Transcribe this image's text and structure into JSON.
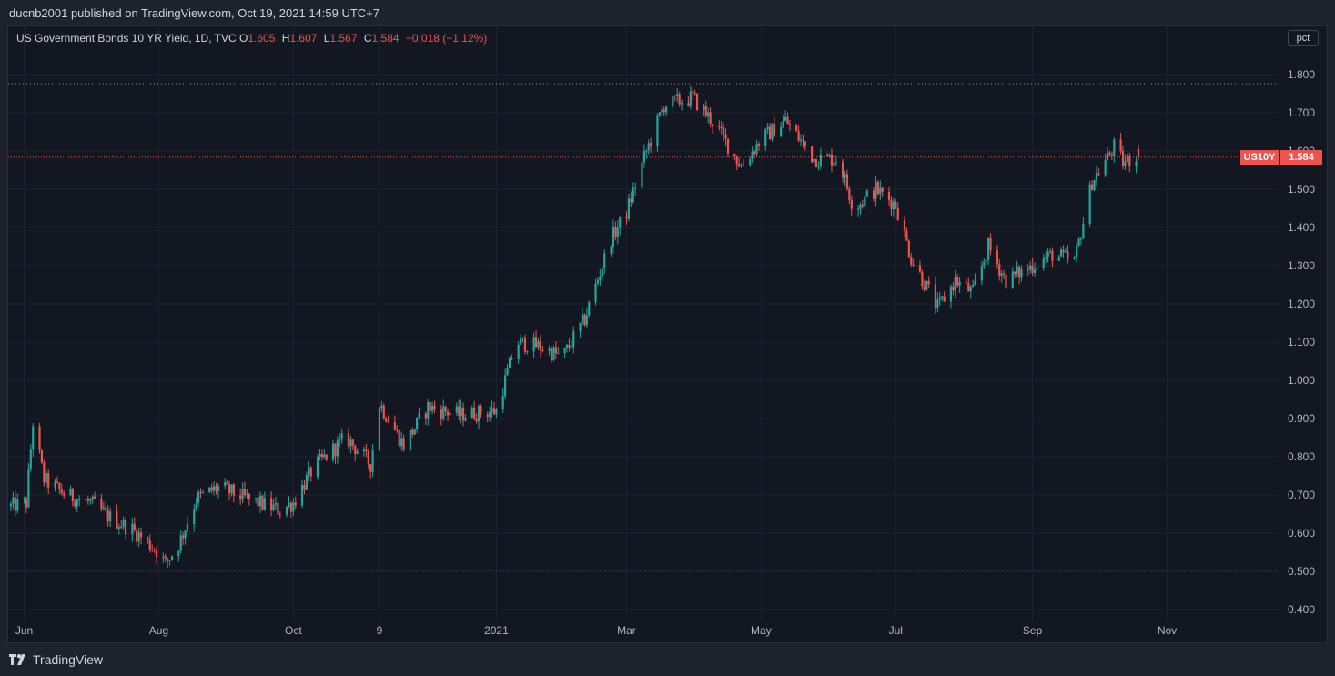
{
  "header": {
    "publish_line": "ducnb2001 published on TradingView.com, Oct 19, 2021 14:59 UTC+7"
  },
  "legend": {
    "symbol_line": "US Government Bonds 10 YR Yield, 1D, TVC",
    "open_label": "O",
    "open_value": "1.605",
    "high_label": "H",
    "high_value": "1.607",
    "low_label": "L",
    "low_value": "1.567",
    "close_label": "C",
    "close_value": "1.584",
    "change": "−0.018 (−1.12%)"
  },
  "scale_button": {
    "label": "pct"
  },
  "price_badge": {
    "symbol": "US10Y",
    "value": "1.584"
  },
  "footer": {
    "brand": "TradingView",
    "logo_icon": "tradingview-logo-icon"
  },
  "colors": {
    "up": "#26a69a",
    "down": "#ef5350",
    "background": "#131722",
    "grid": "#1f2330",
    "text": "#b2b5be"
  },
  "chart_data": {
    "type": "candlestick",
    "y_ticks": [
      "0.400",
      "0.500",
      "0.600",
      "0.700",
      "0.800",
      "0.900",
      "1.000",
      "1.100",
      "1.200",
      "1.300",
      "1.400",
      "1.500",
      "1.600",
      "1.700",
      "1.800"
    ],
    "ylim": [
      0.38,
      1.88
    ],
    "x_ticks": [
      "Jun",
      "Aug",
      "Oct",
      "9",
      "2021",
      "Mar",
      "May",
      "Jul",
      "Sep",
      "Nov"
    ],
    "x_tick_dates": [
      "2020-06-01",
      "2020-08-01",
      "2020-10-01",
      "2020-11-09",
      "2021-01-01",
      "2021-03-01",
      "2021-05-01",
      "2021-07-01",
      "2021-09-01",
      "2021-11-01"
    ],
    "date_range": [
      "2020-05-26",
      "2021-10-19"
    ],
    "reference_lines": [
      1.776,
      0.503
    ],
    "last_price": 1.584,
    "series_path": [
      [
        "2020-05-26",
        0.67
      ],
      [
        "2020-06-02",
        0.68
      ],
      [
        "2020-06-05",
        0.89
      ],
      [
        "2020-06-10",
        0.74
      ],
      [
        "2020-06-20",
        0.7
      ],
      [
        "2020-07-01",
        0.68
      ],
      [
        "2020-07-10",
        0.64
      ],
      [
        "2020-07-20",
        0.61
      ],
      [
        "2020-08-01",
        0.55
      ],
      [
        "2020-08-04",
        0.52
      ],
      [
        "2020-08-10",
        0.57
      ],
      [
        "2020-08-18",
        0.69
      ],
      [
        "2020-08-28",
        0.72
      ],
      [
        "2020-09-10",
        0.69
      ],
      [
        "2020-09-25",
        0.66
      ],
      [
        "2020-10-01",
        0.68
      ],
      [
        "2020-10-10",
        0.77
      ],
      [
        "2020-10-25",
        0.85
      ],
      [
        "2020-11-05",
        0.78
      ],
      [
        "2020-11-09",
        0.94
      ],
      [
        "2020-11-20",
        0.83
      ],
      [
        "2020-12-01",
        0.93
      ],
      [
        "2020-12-15",
        0.91
      ],
      [
        "2021-01-01",
        0.92
      ],
      [
        "2021-01-10",
        1.1
      ],
      [
        "2021-01-20",
        1.09
      ],
      [
        "2021-01-31",
        1.06
      ],
      [
        "2021-02-10",
        1.16
      ],
      [
        "2021-02-22",
        1.37
      ],
      [
        "2021-03-01",
        1.44
      ],
      [
        "2021-03-10",
        1.6
      ],
      [
        "2021-03-18",
        1.72
      ],
      [
        "2021-03-31",
        1.74
      ],
      [
        "2021-04-10",
        1.67
      ],
      [
        "2021-04-22",
        1.56
      ],
      [
        "2021-05-01",
        1.63
      ],
      [
        "2021-05-12",
        1.68
      ],
      [
        "2021-05-25",
        1.58
      ],
      [
        "2021-06-05",
        1.58
      ],
      [
        "2021-06-12",
        1.45
      ],
      [
        "2021-06-22",
        1.5
      ],
      [
        "2021-07-01",
        1.46
      ],
      [
        "2021-07-08",
        1.32
      ],
      [
        "2021-07-20",
        1.19
      ],
      [
        "2021-07-28",
        1.26
      ],
      [
        "2021-08-05",
        1.23
      ],
      [
        "2021-08-12",
        1.35
      ],
      [
        "2021-08-20",
        1.26
      ],
      [
        "2021-09-01",
        1.3
      ],
      [
        "2021-09-10",
        1.33
      ],
      [
        "2021-09-20",
        1.31
      ],
      [
        "2021-09-28",
        1.52
      ],
      [
        "2021-10-08",
        1.61
      ],
      [
        "2021-10-12",
        1.57
      ],
      [
        "2021-10-19",
        1.584
      ]
    ]
  }
}
